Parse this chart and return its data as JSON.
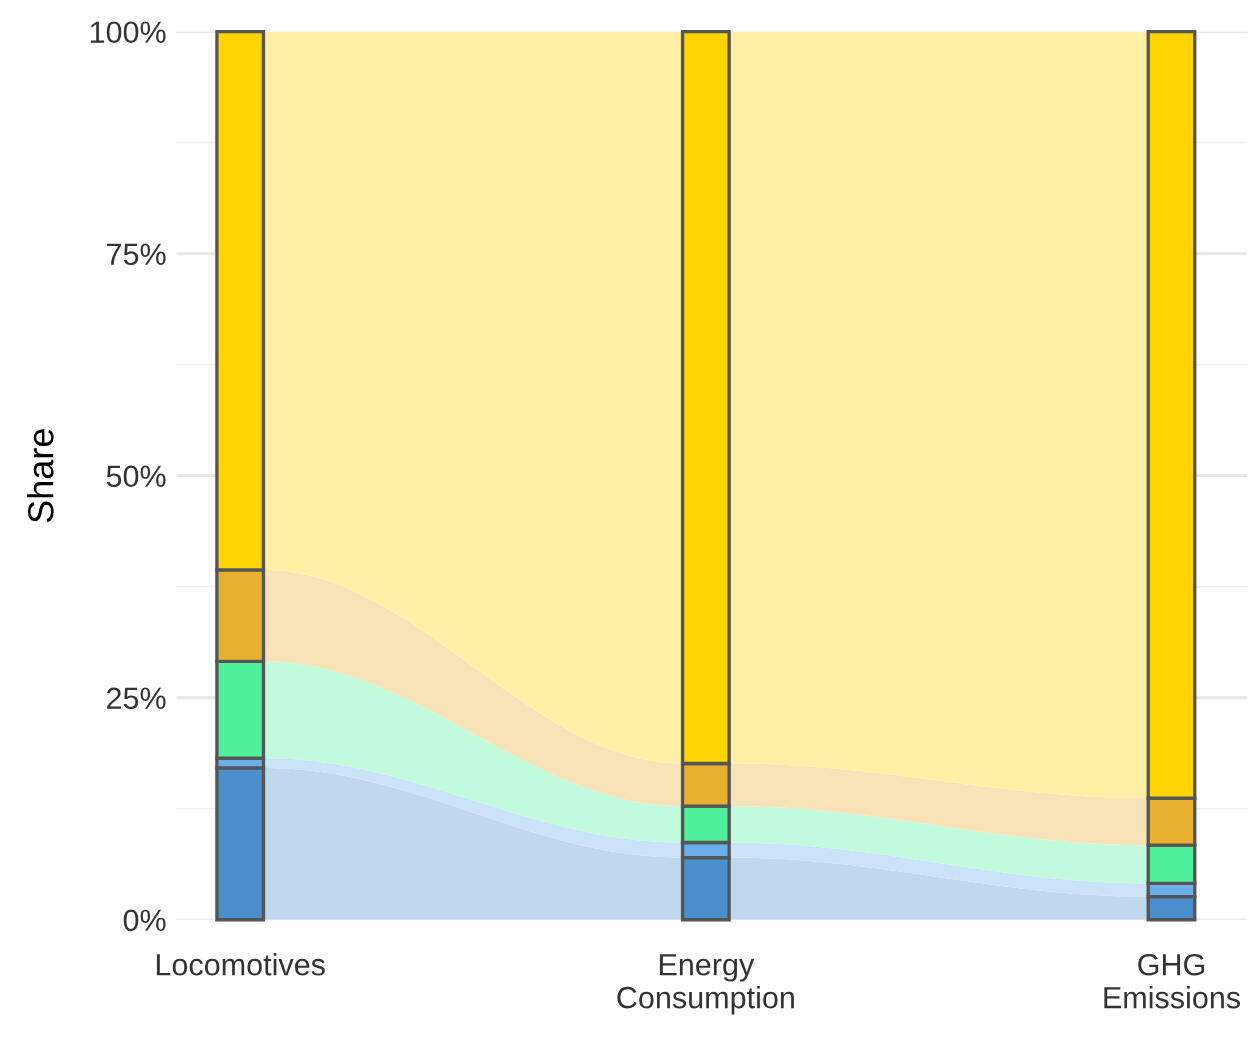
{
  "chart_data": {
    "type": "bar",
    "stacked": true,
    "ylabel": "Share",
    "categories": [
      "Locomotives",
      "Energy\nConsumption",
      "GHG\nEmissions"
    ],
    "series": [
      {
        "color": "#4a8fcc",
        "values": [
          17.1,
          7.0,
          2.6
        ]
      },
      {
        "color": "#6aaeea",
        "values": [
          1.1,
          1.7,
          1.5
        ]
      },
      {
        "color": "#4ff09c",
        "values": [
          10.9,
          4.1,
          4.3
        ]
      },
      {
        "color": "#e8b030",
        "values": [
          10.3,
          4.8,
          5.3
        ]
      },
      {
        "color": "#ffd400",
        "values": [
          60.6,
          82.4,
          86.3
        ]
      }
    ],
    "ylim": [
      0,
      100
    ],
    "yticks": [
      {
        "value": 0,
        "label": "0%"
      },
      {
        "value": 25,
        "label": "25%"
      },
      {
        "value": 50,
        "label": "50%"
      },
      {
        "value": 75,
        "label": "75%"
      },
      {
        "value": 100,
        "label": "100%"
      }
    ],
    "grid": "y"
  }
}
